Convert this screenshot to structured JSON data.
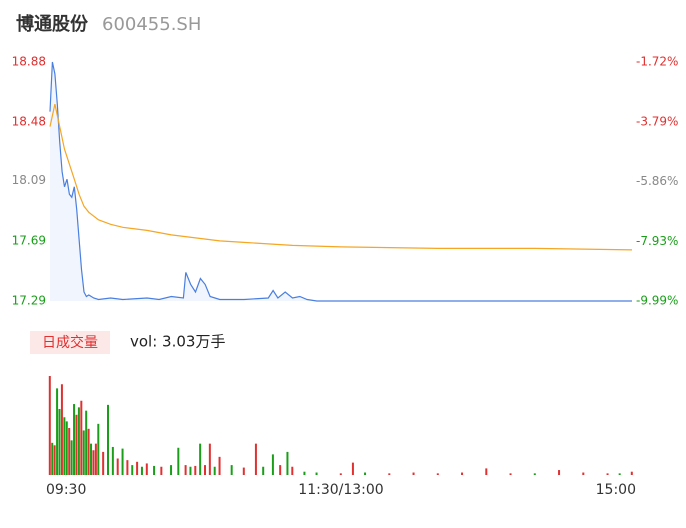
{
  "header": {
    "title": "博通股份",
    "code": "600455.SH"
  },
  "chart_data": {
    "type": "line",
    "xlim": [
      0,
      240
    ],
    "xticks": [
      {
        "value": 0,
        "label": "09:30"
      },
      {
        "value": 120,
        "label": "11:30/13:00"
      },
      {
        "value": 240,
        "label": "15:00"
      }
    ],
    "ylim": [
      17.29,
      18.88
    ],
    "yticks": [
      17.29,
      17.69,
      18.09,
      18.48,
      18.88
    ],
    "ytick_colors": [
      "#1a9e1a",
      "#1a9e1a",
      "#888888",
      "#e03030",
      "#e03030"
    ],
    "y2lim": [
      -9.99,
      -1.72
    ],
    "y2ticks": [
      {
        "value": -9.99,
        "label": "-9.99%"
      },
      {
        "value": -7.93,
        "label": "-7.93%"
      },
      {
        "value": -5.86,
        "label": "-5.86%"
      },
      {
        "value": -3.79,
        "label": "-3.79%"
      },
      {
        "value": -1.72,
        "label": "-1.72%"
      }
    ],
    "series": [
      {
        "color": "#4a7fe0",
        "x": [
          0,
          1,
          2,
          3,
          4,
          5,
          6,
          7,
          8,
          9,
          10,
          11,
          12,
          13,
          14,
          15,
          16,
          18,
          20,
          25,
          30,
          40,
          45,
          50,
          55,
          56,
          58,
          60,
          62,
          64,
          66,
          70,
          80,
          90,
          92,
          94,
          97,
          100,
          103,
          106,
          110,
          240
        ],
        "values": [
          18.55,
          18.88,
          18.8,
          18.6,
          18.35,
          18.15,
          18.05,
          18.1,
          18.0,
          17.98,
          18.05,
          17.9,
          17.7,
          17.5,
          17.35,
          17.32,
          17.33,
          17.31,
          17.3,
          17.31,
          17.3,
          17.31,
          17.3,
          17.32,
          17.31,
          17.48,
          17.4,
          17.35,
          17.44,
          17.4,
          17.32,
          17.3,
          17.3,
          17.31,
          17.36,
          17.31,
          17.35,
          17.31,
          17.32,
          17.3,
          17.29,
          17.29
        ]
      },
      {
        "color": "#f5a623",
        "x": [
          0,
          2,
          4,
          6,
          8,
          10,
          12,
          14,
          16,
          20,
          25,
          30,
          40,
          50,
          60,
          70,
          80,
          100,
          120,
          160,
          200,
          240
        ],
        "values": [
          18.45,
          18.6,
          18.45,
          18.3,
          18.2,
          18.1,
          18.0,
          17.92,
          17.88,
          17.83,
          17.8,
          17.78,
          17.76,
          17.73,
          17.71,
          17.69,
          17.68,
          17.66,
          17.65,
          17.64,
          17.64,
          17.63
        ]
      }
    ],
    "volume": {
      "label": "日成交量",
      "summary": "vol: 3.03万手",
      "x": [
        0,
        1,
        2,
        3,
        4,
        5,
        6,
        7,
        8,
        9,
        10,
        11,
        12,
        13,
        14,
        15,
        16,
        17,
        18,
        19,
        20,
        22,
        24,
        26,
        28,
        30,
        32,
        34,
        36,
        38,
        40,
        43,
        46,
        50,
        53,
        56,
        58,
        60,
        62,
        64,
        66,
        68,
        70,
        75,
        80,
        85,
        88,
        92,
        95,
        98,
        100,
        105,
        110,
        120,
        125,
        130,
        140,
        150,
        160,
        170,
        180,
        190,
        200,
        210,
        220,
        230,
        235,
        240
      ],
      "values": [
        1200,
        390,
        360,
        1050,
        800,
        1100,
        700,
        650,
        570,
        420,
        860,
        730,
        820,
        900,
        540,
        780,
        560,
        380,
        300,
        380,
        620,
        280,
        850,
        340,
        200,
        320,
        180,
        120,
        160,
        100,
        140,
        110,
        100,
        120,
        330,
        120,
        100,
        110,
        380,
        120,
        380,
        100,
        220,
        120,
        90,
        380,
        100,
        250,
        120,
        280,
        100,
        40,
        30,
        20,
        150,
        30,
        20,
        30,
        20,
        30,
        80,
        20,
        20,
        60,
        30,
        20,
        20,
        40
      ],
      "colors": [
        "#e03030",
        "#1a9e1a",
        "#e03030",
        "#1a9e1a",
        "#1a9e1a",
        "#e03030",
        "#1a9e1a",
        "#1a9e1a",
        "#e03030",
        "#1a9e1a",
        "#1a9e1a",
        "#e03030",
        "#1a9e1a",
        "#e03030",
        "#1a9e1a",
        "#1a9e1a",
        "#e03030",
        "#1a9e1a",
        "#e03030",
        "#e03030",
        "#1a9e1a",
        "#e03030",
        "#1a9e1a",
        "#1a9e1a",
        "#e03030",
        "#1a9e1a",
        "#e03030",
        "#1a9e1a",
        "#e03030",
        "#1a9e1a",
        "#e03030",
        "#1a9e1a",
        "#e03030",
        "#1a9e1a",
        "#1a9e1a",
        "#e03030",
        "#1a9e1a",
        "#e03030",
        "#1a9e1a",
        "#e03030",
        "#e03030",
        "#1a9e1a",
        "#e03030",
        "#1a9e1a",
        "#e03030",
        "#e03030",
        "#1a9e1a",
        "#1a9e1a",
        "#e03030",
        "#1a9e1a",
        "#e03030",
        "#1a9e1a",
        "#1a9e1a",
        "#e03030",
        "#e03030",
        "#1a9e1a",
        "#e03030",
        "#e03030",
        "#e03030",
        "#e03030",
        "#e03030",
        "#e03030",
        "#1a9e1a",
        "#e03030",
        "#e03030",
        "#e03030",
        "#1a9e1a",
        "#e03030"
      ]
    }
  }
}
